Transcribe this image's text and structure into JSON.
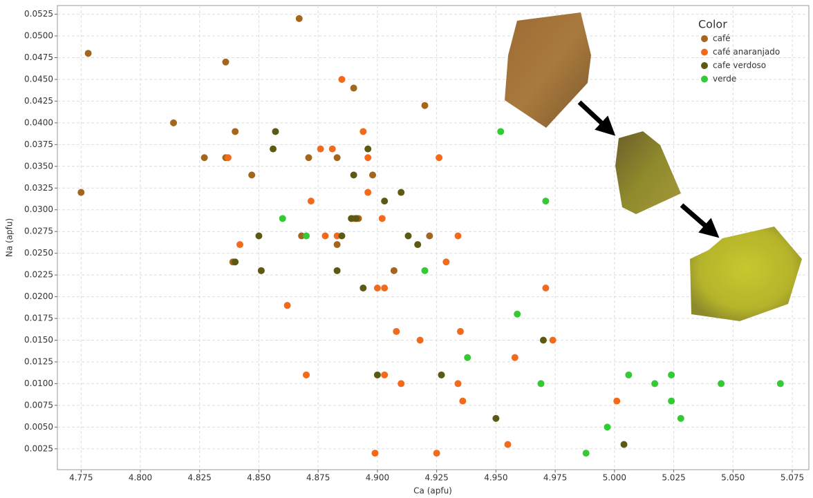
{
  "chart_data": {
    "type": "scatter",
    "x_label": "Ca (apfu)",
    "y_label": "Na (apfu)",
    "legend_title": "Color",
    "legend": "upper right",
    "grid": true,
    "xlim": [
      4.765,
      5.082
    ],
    "ylim": [
      0.0001,
      0.0535
    ],
    "xticks": [
      4.775,
      {
        "value": 4.8,
        "label": "4.800"
      },
      4.825,
      {
        "value": 4.85,
        "label": "4.850"
      },
      4.875,
      {
        "value": 4.9,
        "label": "4.900"
      },
      4.925,
      {
        "value": 4.95,
        "label": "4.950"
      },
      4.975,
      {
        "value": 5.0,
        "label": "5.000"
      },
      5.025,
      {
        "value": 5.05,
        "label": "5.050"
      },
      5.075
    ],
    "yticks": [
      0.0025,
      {
        "value": 0.005,
        "label": "0.0050"
      },
      0.0075,
      {
        "value": 0.01,
        "label": "0.0100"
      },
      0.0125,
      {
        "value": 0.015,
        "label": "0.0150"
      },
      0.0175,
      {
        "value": 0.02,
        "label": "0.0200"
      },
      0.0225,
      {
        "value": 0.025,
        "label": "0.0250"
      },
      0.0275,
      {
        "value": 0.03,
        "label": "0.0300"
      },
      0.0325,
      {
        "value": 0.035,
        "label": "0.0350"
      },
      0.0375,
      {
        "value": 0.04,
        "label": "0.0400"
      },
      0.0425,
      {
        "value": 0.045,
        "label": "0.0450"
      },
      0.0475,
      {
        "value": 0.05,
        "label": "0.0500"
      },
      0.0525
    ],
    "series": [
      {
        "name": "café",
        "color": "#a3661c",
        "x": [
          4.775,
          4.778,
          4.814,
          4.827,
          4.836,
          4.836,
          4.84,
          4.847,
          4.867,
          4.871,
          4.868,
          4.89,
          4.892,
          4.883,
          4.883,
          4.898,
          4.907,
          4.92,
          4.922,
          4.839
        ],
        "values": [
          0.032,
          0.048,
          0.04,
          0.036,
          0.047,
          0.036,
          0.039,
          0.034,
          0.052,
          0.036,
          0.027,
          0.044,
          0.029,
          0.026,
          0.036,
          0.034,
          0.023,
          0.042,
          0.027,
          0.024
        ]
      },
      {
        "name": "café anaranjado",
        "color": "#f26b1d",
        "x": [
          4.837,
          4.885,
          4.894,
          4.876,
          4.881,
          4.896,
          4.926,
          4.842,
          4.872,
          4.878,
          4.883,
          4.89,
          4.902,
          4.896,
          4.934,
          4.862,
          4.9,
          4.903,
          4.929,
          4.971,
          4.908,
          4.918,
          4.935,
          4.974,
          4.87,
          4.903,
          4.91,
          4.934,
          4.936,
          4.958,
          5.001,
          4.955,
          4.899,
          4.925
        ],
        "values": [
          0.036,
          0.045,
          0.039,
          0.037,
          0.037,
          0.036,
          0.036,
          0.026,
          0.031,
          0.027,
          0.027,
          0.029,
          0.029,
          0.032,
          0.027,
          0.019,
          0.021,
          0.021,
          0.024,
          0.021,
          0.016,
          0.015,
          0.016,
          0.015,
          0.011,
          0.011,
          0.01,
          0.01,
          0.008,
          0.013,
          0.008,
          0.003,
          0.002,
          0.002
        ]
      },
      {
        "name": "cafe verdoso",
        "color": "#5c5a12",
        "x": [
          4.857,
          4.856,
          4.896,
          4.89,
          4.91,
          4.903,
          4.889,
          4.891,
          4.885,
          4.85,
          4.913,
          4.917,
          4.84,
          4.851,
          4.883,
          4.894,
          4.97,
          4.9,
          4.927,
          4.95,
          5.004
        ],
        "values": [
          0.039,
          0.037,
          0.037,
          0.034,
          0.032,
          0.031,
          0.029,
          0.029,
          0.027,
          0.027,
          0.027,
          0.026,
          0.024,
          0.023,
          0.023,
          0.021,
          0.015,
          0.011,
          0.011,
          0.006,
          0.003
        ]
      },
      {
        "name": "verde",
        "color": "#35c935",
        "x": [
          4.952,
          4.971,
          4.86,
          4.87,
          4.92,
          4.959,
          4.938,
          4.969,
          5.006,
          5.017,
          5.024,
          5.024,
          5.045,
          5.07,
          5.028,
          4.997,
          4.988
        ],
        "values": [
          0.039,
          0.031,
          0.029,
          0.027,
          0.023,
          0.018,
          0.013,
          0.01,
          0.011,
          0.01,
          0.011,
          0.008,
          0.01,
          0.01,
          0.006,
          0.005,
          0.002
        ]
      }
    ]
  }
}
